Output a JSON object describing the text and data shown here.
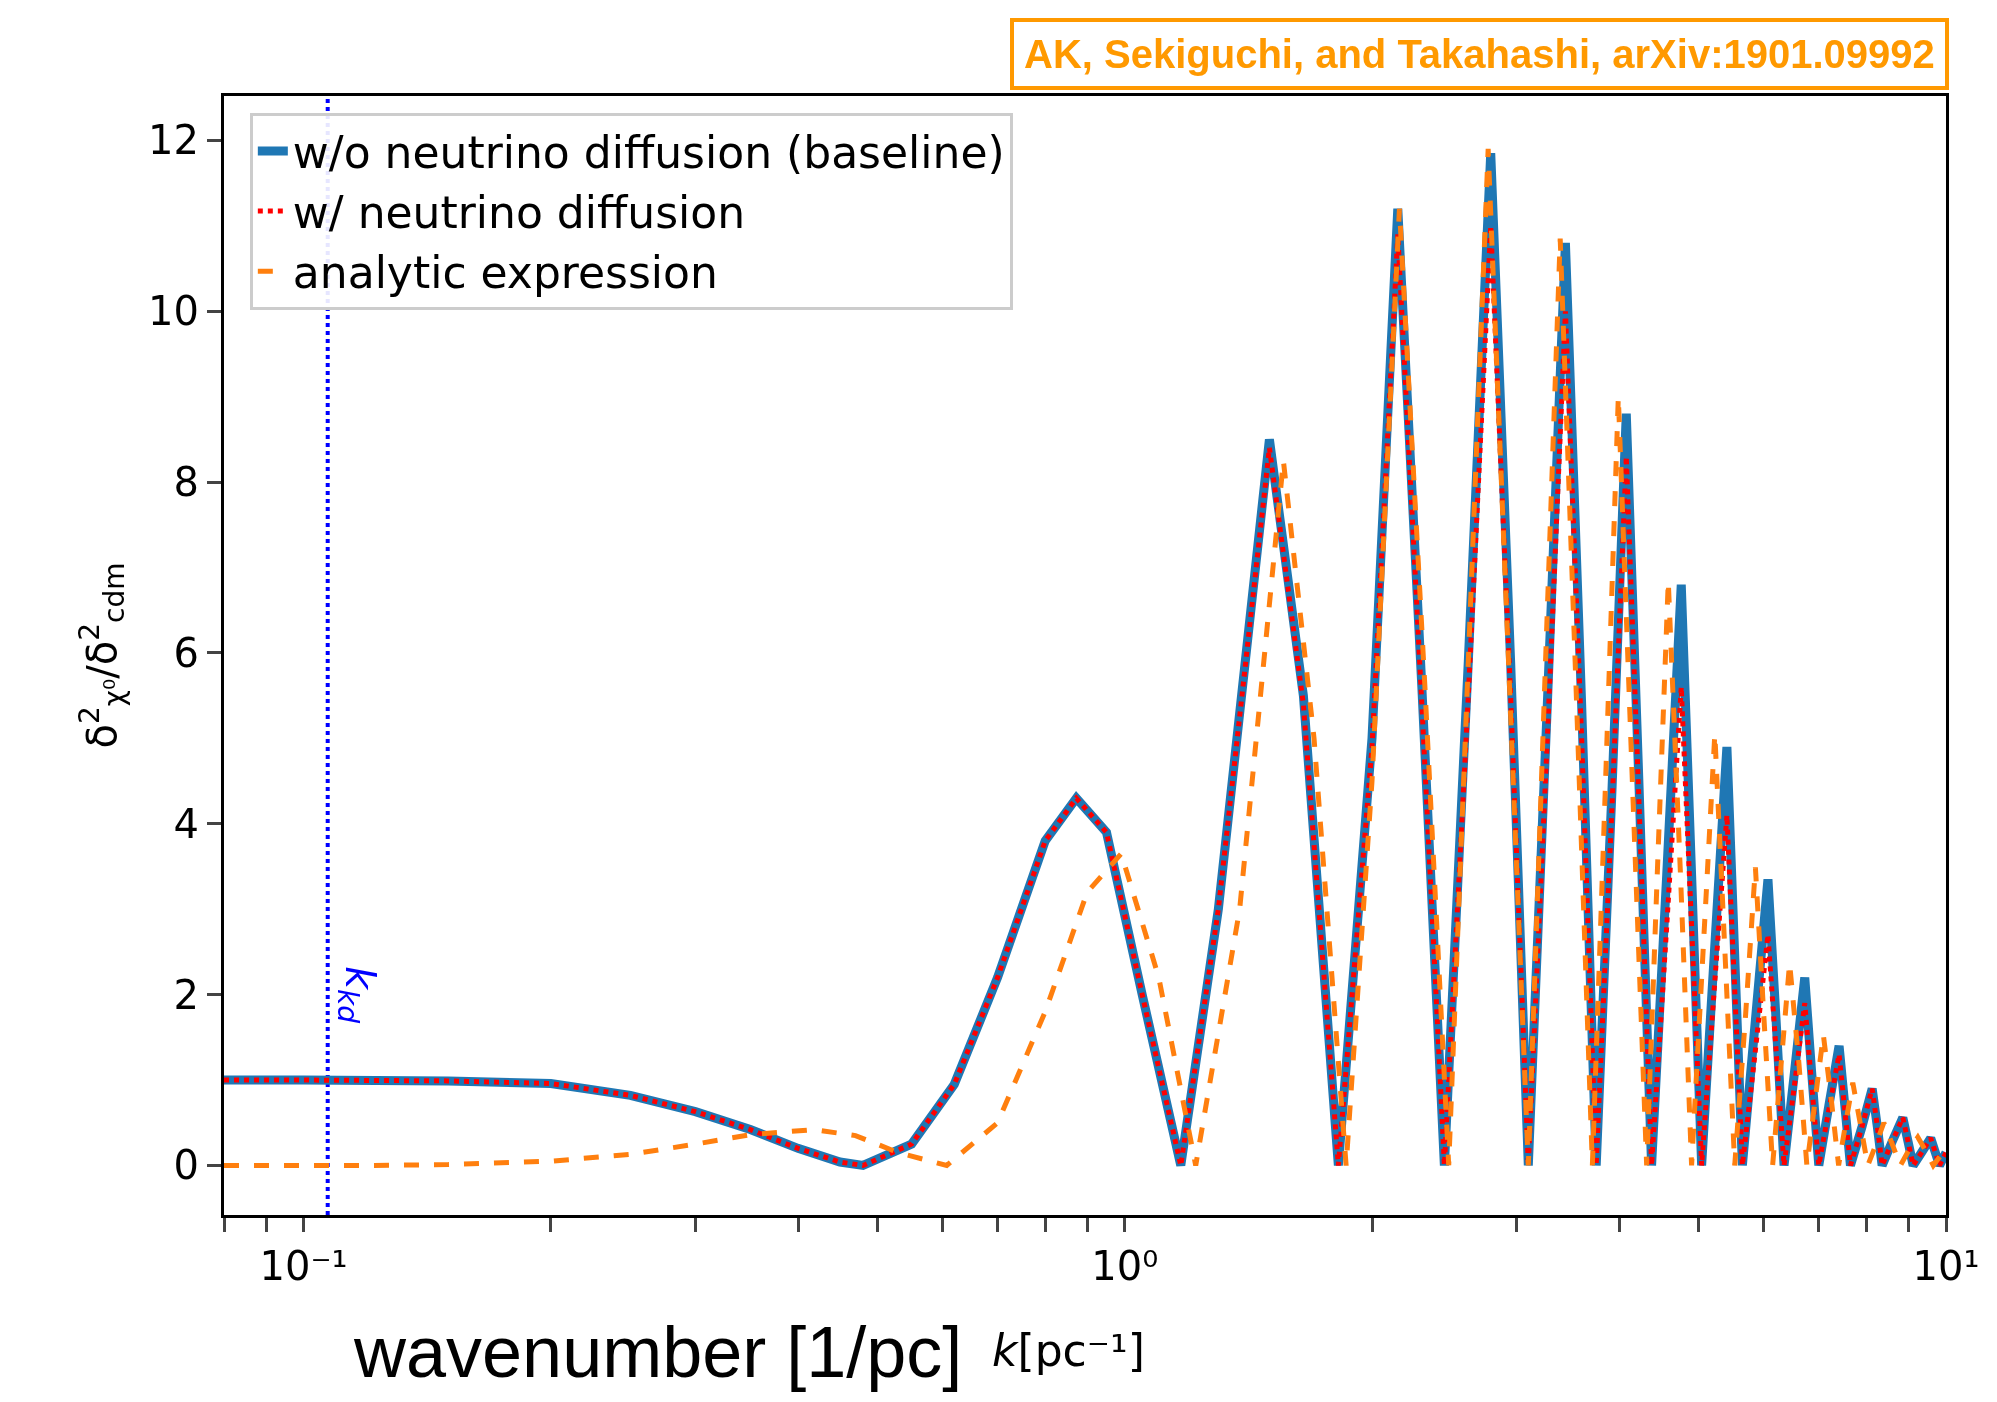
{
  "chart_data": {
    "type": "line",
    "xlabel": "wavenumber [1/pc]",
    "ylabel": "δ$^{2}$$_{χ⁰}$/δ$^{2}$$_{cdm}$",
    "annotations": [
      "k[pc⁻¹]",
      "AK, Sekiguchi, and Takahashi, arXiv:1901.09992"
    ],
    "log": "x",
    "xlim": [
      0.08,
      10
    ],
    "ylim": [
      -0.58,
      12.52
    ],
    "xticks": [
      {
        "value": 0.08,
        "label": null
      },
      {
        "value": 0.09,
        "label": null
      },
      {
        "value": 0.1,
        "label": "10⁻¹"
      },
      {
        "value": 0.2,
        "label": null
      },
      {
        "value": 0.3,
        "label": null
      },
      {
        "value": 0.4,
        "label": null
      },
      {
        "value": 0.5,
        "label": null
      },
      {
        "value": 0.6,
        "label": null
      },
      {
        "value": 0.7,
        "label": null
      },
      {
        "value": 0.8,
        "label": null
      },
      {
        "value": 0.9,
        "label": null
      },
      {
        "value": 1,
        "label": "10⁰"
      },
      {
        "value": 2,
        "label": null
      },
      {
        "value": 3,
        "label": null
      },
      {
        "value": 4,
        "label": null
      },
      {
        "value": 5,
        "label": null
      },
      {
        "value": 6,
        "label": null
      },
      {
        "value": 7,
        "label": null
      },
      {
        "value": 8,
        "label": null
      },
      {
        "value": 9,
        "label": null
      },
      {
        "value": 10,
        "label": "10¹"
      }
    ],
    "yticks": [
      0,
      2,
      4,
      6,
      8,
      10,
      12
    ],
    "grid": false,
    "legend": "top left",
    "marker": "none",
    "ref_lines": [
      {
        "axis": "x",
        "value": 0.107,
        "label": "k$_{kd}$",
        "color": "#0000ff",
        "line_style": "dotted"
      }
    ],
    "series": [
      {
        "name": "w/o neutrino diffusion (baseline)",
        "color": "#1f77b4",
        "line_style": "solid",
        "x": [
          0.08,
          0.1,
          0.15,
          0.2,
          0.25,
          0.3,
          0.35,
          0.4,
          0.45,
          0.48,
          0.55,
          0.62,
          0.7,
          0.8,
          0.873,
          0.95,
          1.05,
          1.17,
          1.3,
          1.5,
          1.65,
          1.82,
          2.0,
          2.15,
          2.3,
          2.45,
          2.62,
          2.79,
          2.95,
          3.1,
          3.27,
          3.44,
          3.6,
          3.75,
          3.92,
          4.08,
          4.23,
          4.38,
          4.57,
          4.76,
          4.9,
          5.04,
          5.22,
          5.41,
          5.53,
          5.65,
          5.86,
          6.07,
          6.21,
          6.35,
          6.54,
          6.73,
          6.86,
          7.0,
          7.2,
          7.41,
          7.53,
          7.65,
          7.9,
          8.13,
          8.25,
          8.36,
          8.6,
          8.86,
          8.99,
          9.12,
          9.35,
          9.58,
          9.7,
          9.82,
          10
        ],
        "values": [
          1,
          1,
          0.99,
          0.96,
          0.82,
          0.63,
          0.42,
          0.2,
          0.04,
          0,
          0.25,
          0.95,
          2.2,
          3.8,
          4.3,
          3.9,
          2.0,
          0,
          3.0,
          8.5,
          5.5,
          0,
          5.0,
          11.2,
          5.6,
          0,
          5.9,
          11.85,
          5.9,
          0,
          5.4,
          10.8,
          5.4,
          0,
          4.4,
          8.8,
          4.4,
          0,
          3.4,
          6.8,
          3.4,
          0,
          2.45,
          4.9,
          2.45,
          0,
          1.7,
          3.35,
          1.7,
          0,
          1.1,
          2.2,
          1.1,
          0,
          0.7,
          1.4,
          0.7,
          0,
          0.45,
          0.9,
          0.45,
          0,
          0.28,
          0.56,
          0.28,
          0,
          0.16,
          0.32,
          0.16,
          0,
          0.15
        ]
      },
      {
        "name": "w/ neutrino diffusion",
        "color": "#ff0000",
        "line_style": "dotted",
        "x": [
          0.08,
          0.1,
          0.15,
          0.2,
          0.25,
          0.3,
          0.35,
          0.4,
          0.45,
          0.48,
          0.55,
          0.62,
          0.7,
          0.8,
          0.873,
          0.95,
          1.05,
          1.17,
          1.3,
          1.5,
          1.65,
          1.82,
          2.0,
          2.15,
          2.3,
          2.45,
          2.62,
          2.79,
          2.95,
          3.1,
          3.27,
          3.44,
          3.6,
          3.75,
          3.92,
          4.08,
          4.23,
          4.38,
          4.57,
          4.76,
          4.9,
          5.04,
          5.22,
          5.41,
          5.53,
          5.65,
          5.86,
          6.07,
          6.21,
          6.35,
          6.54,
          6.73,
          6.86,
          7.0,
          7.2,
          7.41,
          7.53,
          7.65,
          7.9,
          8.13,
          8.25,
          8.36,
          8.6,
          8.86,
          8.99,
          9.12,
          9.35,
          9.58,
          9.7,
          9.82,
          10
        ],
        "values": [
          1,
          1,
          0.99,
          0.96,
          0.82,
          0.63,
          0.42,
          0.2,
          0.04,
          0,
          0.25,
          0.95,
          2.2,
          3.8,
          4.3,
          3.9,
          2.0,
          0,
          3.0,
          8.4,
          5.4,
          0,
          4.9,
          10.9,
          5.4,
          0,
          5.5,
          11.0,
          5.5,
          0,
          5.0,
          10.0,
          5.0,
          0,
          4.2,
          8.3,
          4.2,
          0,
          2.8,
          5.6,
          2.8,
          0,
          2.05,
          4.1,
          2.05,
          0,
          1.35,
          2.7,
          1.35,
          0,
          0.95,
          1.9,
          0.95,
          0,
          0.65,
          1.3,
          0.65,
          0,
          0.45,
          0.9,
          0.45,
          0,
          0.28,
          0.56,
          0.28,
          0,
          0.16,
          0.32,
          0.16,
          0,
          0.15
        ]
      },
      {
        "name": "analytic expression",
        "color": "#ff7f0e",
        "line_style": "dashed",
        "x": [
          0.08,
          0.12,
          0.15,
          0.2,
          0.25,
          0.3,
          0.35,
          0.418,
          0.47,
          0.53,
          0.607,
          0.7,
          0.8,
          0.9,
          0.99,
          1.1,
          1.22,
          1.38,
          1.56,
          1.7,
          1.86,
          2.0,
          2.16,
          2.32,
          2.48,
          2.62,
          2.77,
          2.93,
          3.1,
          3.24,
          3.39,
          3.55,
          3.71,
          3.85,
          3.99,
          4.15,
          4.32,
          4.45,
          4.59,
          4.75,
          4.9,
          5.06,
          5.23,
          5.38,
          5.53,
          5.7,
          5.86,
          6.0,
          6.15,
          6.3,
          6.45,
          6.62,
          6.77,
          6.93,
          7.09,
          7.25,
          7.4,
          7.55,
          7.7,
          7.86,
          8.03,
          8.22,
          8.4,
          8.6,
          8.8,
          9.0,
          9.24,
          9.45,
          9.65,
          10
        ],
        "values": [
          0,
          0,
          0.01,
          0.05,
          0.13,
          0.25,
          0.36,
          0.42,
          0.35,
          0.15,
          0,
          0.5,
          1.8,
          3.2,
          3.65,
          2.2,
          0,
          3.0,
          8.25,
          5.0,
          0,
          4.5,
          11.2,
          5.6,
          0,
          5.9,
          11.9,
          6.0,
          0,
          5.4,
          10.85,
          5.4,
          0,
          4.5,
          9.0,
          4.5,
          0,
          3.4,
          6.84,
          3.4,
          0,
          2.5,
          5.05,
          2.5,
          0,
          1.75,
          3.49,
          1.75,
          0,
          1.2,
          2.37,
          1.2,
          0,
          0.77,
          1.53,
          0.77,
          0,
          0.5,
          0.97,
          0.5,
          0,
          0.25,
          0.5,
          0.25,
          0,
          0.17,
          0.33,
          0.17,
          0,
          0.2
        ]
      }
    ]
  }
}
